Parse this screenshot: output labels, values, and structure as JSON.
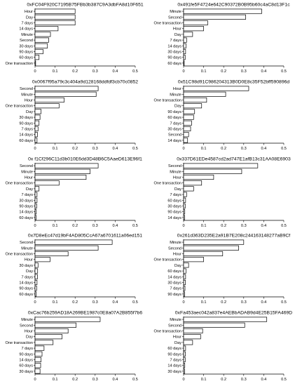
{
  "chart_data": [
    {
      "type": "bar",
      "orientation": "horizontal",
      "title": "0xFC04F920C7195B75FBb3b387C9A3dbFA8d10F651",
      "categories": [
        "Hour",
        "Day",
        "7 days",
        "14 days",
        "Minute",
        "Second",
        "30 days",
        "90 days",
        "60 days",
        "One transaction"
      ],
      "values": [
        0.2,
        0.2,
        0.2,
        0.115,
        0.077,
        0.068,
        0.062,
        0.04,
        0.02,
        0.003
      ],
      "xlim": [
        0,
        0.5
      ],
      "xticks": [
        "0",
        "0.1",
        "0.2",
        "0.3",
        "0.4",
        "0.5"
      ]
    },
    {
      "type": "bar",
      "orientation": "horizontal",
      "title": "0x491fe5F4724e642C90372B0B95b60c4aC8d13F1c",
      "categories": [
        "Minute",
        "Second",
        "One transaction",
        "Hour",
        "Day",
        "7 days",
        "14 days",
        "30 days",
        "90 days",
        "60 days"
      ],
      "values": [
        0.39,
        0.31,
        0.12,
        0.1,
        0.045,
        0.015,
        0.012,
        0.01,
        0.008,
        0.003
      ],
      "xlim": [
        0,
        0.5
      ],
      "xticks": [
        "0",
        "0.1",
        "0.2",
        "0.3",
        "0.4",
        "0.5"
      ]
    },
    {
      "type": "bar",
      "orientation": "horizontal",
      "title": "0x0067f95a79c3c404a9d128168ddfdf3cb70c0852",
      "categories": [
        "Second",
        "Minute",
        "Hour",
        "One transaction",
        "Day",
        "30 days",
        "90 days",
        "7 days",
        "14 days",
        "60 days"
      ],
      "values": [
        0.315,
        0.305,
        0.145,
        0.12,
        0.03,
        0.025,
        0.02,
        0.015,
        0.012,
        0.01
      ],
      "xlim": [
        0,
        0.5
      ],
      "xticks": [
        "0",
        "0.1",
        "0.2",
        "0.3",
        "0.4",
        "0.5"
      ]
    },
    {
      "type": "bar",
      "orientation": "horizontal",
      "title": "0x51C98d91C986204313B0D0E8c35F52bff590896d",
      "categories": [
        "Hour",
        "Minute",
        "One transaction",
        "Day",
        "90 days",
        "60 days",
        "7 days",
        "30 days",
        "Second",
        "14 days"
      ],
      "values": [
        0.325,
        0.21,
        0.115,
        0.09,
        0.055,
        0.05,
        0.04,
        0.035,
        0.025,
        0.02
      ],
      "xlim": [
        0,
        0.5
      ],
      "xticks": [
        "0",
        "0.1",
        "0.2",
        "0.3",
        "0.4",
        "0.5"
      ]
    },
    {
      "type": "bar",
      "orientation": "horizontal",
      "title": "0x f1Cf296C11d3b010E6dd3D48B6C5AaeD613E96f1",
      "categories": [
        "Second",
        "Minute",
        "Hour",
        "One transaction",
        "Day",
        "7 days",
        "30 days",
        "90 days",
        "14 days",
        "60 days"
      ],
      "values": [
        0.315,
        0.275,
        0.255,
        0.12,
        0.02,
        0.01,
        0.01,
        0.008,
        0.006,
        0.005
      ],
      "xlim": [
        0,
        0.5
      ],
      "xticks": [
        "0",
        "0.1",
        "0.2",
        "0.3",
        "0.4",
        "0.5"
      ]
    },
    {
      "type": "bar",
      "orientation": "horizontal",
      "title": "0x337D61EDe4587cd2ad747E1afB13c31AA08E6903",
      "categories": [
        "Second",
        "Minute",
        "Hour",
        "One transaction",
        "Day",
        "7 days",
        "60 days",
        "30 days",
        "90 days",
        "14 days"
      ],
      "values": [
        0.37,
        0.29,
        0.15,
        0.09,
        0.05,
        0.015,
        0.01,
        0.008,
        0.006,
        0.005
      ],
      "xlim": [
        0,
        0.5
      ],
      "xticks": [
        "0",
        "0.1",
        "0.2",
        "0.3",
        "0.4",
        "0.5"
      ]
    },
    {
      "type": "bar",
      "orientation": "horizontal",
      "title": "0x7D8eEc47d19bF4AD805CcA67a6701611a06ed151",
      "categories": [
        "Second",
        "Minute",
        "One transaction",
        "Hour",
        "30 days",
        "Day",
        "7 days",
        "14 days",
        "90 days",
        "60 days"
      ],
      "values": [
        0.385,
        0.315,
        0.165,
        0.075,
        0.015,
        0.013,
        0.012,
        0.01,
        0.008,
        0.006
      ],
      "xlim": [
        0,
        0.5
      ],
      "xticks": [
        "0",
        "0.1",
        "0.2",
        "0.3",
        "0.4",
        "0.5"
      ]
    },
    {
      "type": "bar",
      "orientation": "horizontal",
      "title": "0x261d363D235E2a91B7E208c244163148277aB9Cf",
      "categories": [
        "Minute",
        "Second",
        "Hour",
        "One transaction",
        "Day",
        "60 days",
        "14 days",
        "30 days",
        "7 days",
        "90 days"
      ],
      "values": [
        0.3,
        0.275,
        0.195,
        0.1,
        0.025,
        0.012,
        0.01,
        0.009,
        0.007,
        0.005
      ],
      "xlim": [
        0,
        0.5
      ],
      "xticks": [
        "0",
        "0.1",
        "0.2",
        "0.3",
        "0.4",
        "0.5"
      ]
    },
    {
      "type": "bar",
      "orientation": "horizontal",
      "title": "0xCac76b259AD18A269BE1987c0E8a07A2B855f7b6",
      "categories": [
        "Minute",
        "Second",
        "Hour",
        "Day",
        "One transaction",
        "7 days",
        "90 days",
        "14 days",
        "60 days",
        "30 days"
      ],
      "values": [
        0.325,
        0.205,
        0.165,
        0.135,
        0.09,
        0.045,
        0.035,
        0.03,
        0.028,
        0.025
      ],
      "xlim": [
        0,
        0.5
      ],
      "xticks": [
        "0",
        "0.1",
        "0.2",
        "0.3",
        "0.4",
        "0.5"
      ]
    },
    {
      "type": "bar",
      "orientation": "horizontal",
      "title": "0xFa453aec042a837e4AEBbADAB9d4E25B15FA469D",
      "categories": [
        "Minute",
        "Second",
        "One transaction",
        "Hour",
        "Day",
        "60 days",
        "90 days",
        "7 days",
        "14 days",
        "30 days"
      ],
      "values": [
        0.415,
        0.305,
        0.095,
        0.085,
        0.045,
        0.01,
        0.009,
        0.008,
        0.006,
        0.005
      ],
      "xlim": [
        0,
        0.5
      ],
      "xticks": [
        "0",
        "0.1",
        "0.2",
        "0.3",
        "0.4",
        "0.5"
      ]
    }
  ]
}
